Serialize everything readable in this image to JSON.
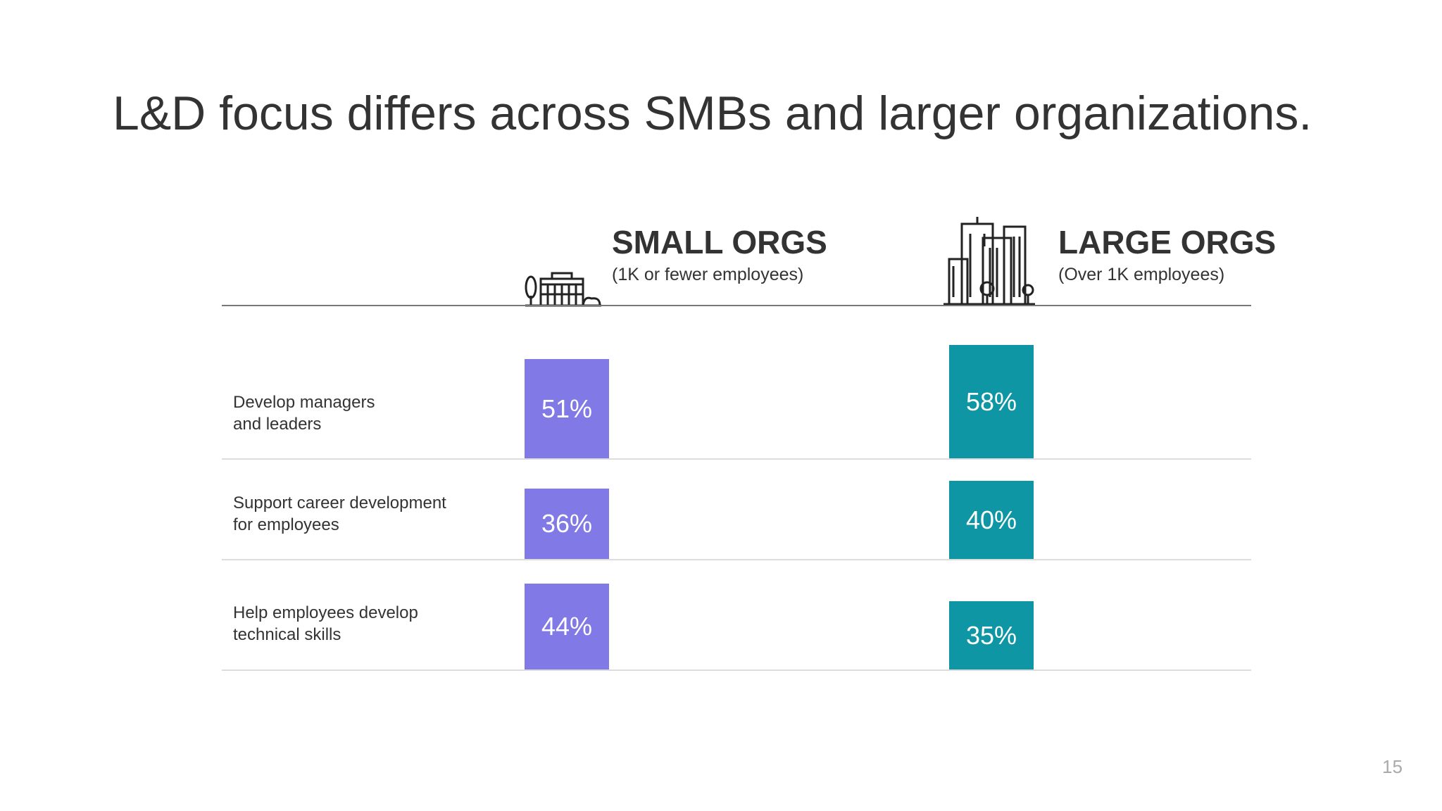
{
  "title": "L&D focus differs across SMBs and larger organizations.",
  "columns": {
    "small": {
      "heading": "SMALL ORGS",
      "subheading": "(1K or fewer employees)",
      "icon": "small-building-icon",
      "color": "#8179e6"
    },
    "large": {
      "heading": "LARGE ORGS",
      "subheading": "(Over 1K employees)",
      "icon": "city-buildings-icon",
      "color": "#0f96a4"
    }
  },
  "rows": [
    {
      "label_line1": "Develop managers",
      "label_line2": "and leaders",
      "small_label": "51%",
      "large_label": "58%"
    },
    {
      "label_line1": "Support career development",
      "label_line2": "for employees",
      "small_label": "36%",
      "large_label": "40%"
    },
    {
      "label_line1": "Help employees develop",
      "label_line2": "technical skills",
      "small_label": "44%",
      "large_label": "35%"
    }
  ],
  "chart_data": {
    "type": "bar",
    "categories": [
      "Develop managers and leaders",
      "Support career development for employees",
      "Help employees develop technical skills"
    ],
    "series": [
      {
        "name": "SMALL ORGS",
        "values": [
          51,
          36,
          44
        ]
      },
      {
        "name": "LARGE ORGS",
        "values": [
          58,
          40,
          35
        ]
      }
    ],
    "unit": "%"
  },
  "page_number": "15"
}
